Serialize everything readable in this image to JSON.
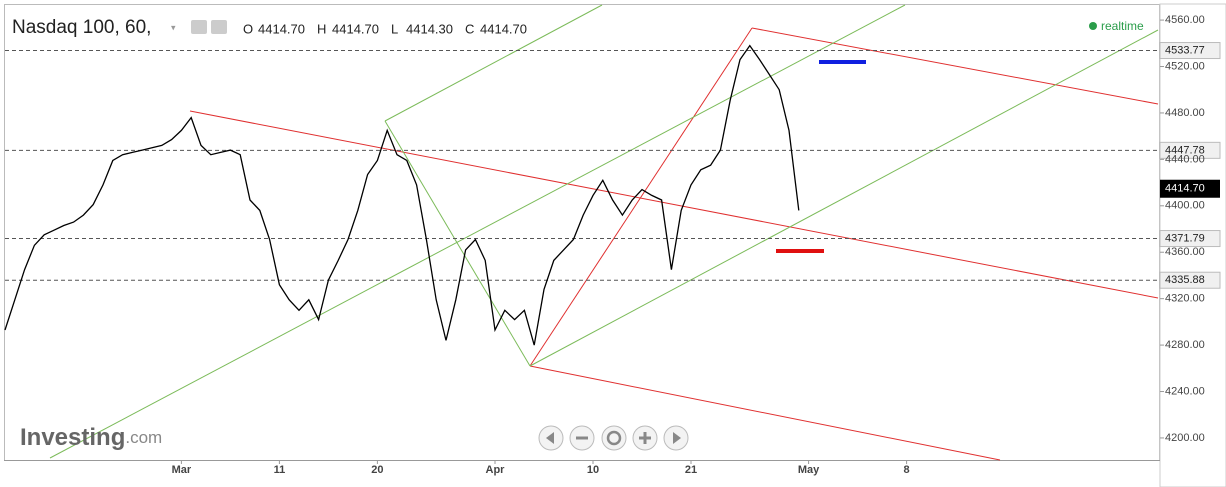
{
  "header": {
    "title": "Nasdaq 100, 60,",
    "ohlc": [
      {
        "key": "O",
        "value": "4414.70"
      },
      {
        "key": "H",
        "value": "4414.70"
      },
      {
        "key": "L",
        "value": "4414.30"
      },
      {
        "key": "C",
        "value": "4414.70"
      }
    ],
    "status": "realtime",
    "brand": "Investing",
    "brand_suffix": ".com"
  },
  "chart_data": {
    "type": "line",
    "color": "#000000",
    "categories": [
      null,
      null,
      null,
      null,
      null,
      null,
      null,
      null,
      null,
      null,
      null,
      null,
      null,
      null,
      null,
      null,
      null,
      null,
      "Mar",
      null,
      null,
      null,
      null,
      null,
      null,
      null,
      null,
      null,
      "11",
      null,
      null,
      null,
      null,
      null,
      null,
      null,
      null,
      null,
      "20",
      null,
      null,
      null,
      null,
      null,
      null,
      null,
      null,
      null,
      null,
      null,
      "Apr",
      null,
      null,
      null,
      null,
      null,
      null,
      null,
      null,
      null,
      "10",
      null,
      null,
      null,
      null,
      null,
      null,
      null,
      null,
      null,
      "21",
      null,
      null,
      null,
      null,
      null,
      null,
      null,
      null,
      null,
      null,
      null,
      "May",
      null,
      null,
      null,
      null,
      null,
      null,
      null,
      null,
      null,
      "8"
    ],
    "values": [
      4293,
      4319,
      4345,
      4366,
      4375,
      4379,
      4383,
      4386,
      4392,
      4401,
      4418,
      4439,
      4444,
      4446,
      4448,
      4450,
      4452,
      4457,
      4465,
      4476,
      4452,
      4444,
      4446,
      4448,
      4444,
      4405,
      4396,
      4371,
      4332,
      4319,
      4310,
      4319,
      4302,
      4336,
      4353,
      4371,
      4396,
      4427,
      4439,
      4465,
      4444,
      4439,
      4418,
      4371,
      4319,
      4284,
      4319,
      4362,
      4371,
      4353,
      4293,
      4310,
      4302,
      4310,
      4280,
      4328,
      4353,
      4362,
      4371,
      4392,
      4409,
      4422,
      4405,
      4392,
      4405,
      4414,
      4409,
      4405,
      4345,
      4396,
      4418,
      4431,
      4435,
      4448,
      4491,
      4526,
      4538,
      4526,
      4513,
      4500,
      4465,
      4396,
      null,
      null,
      null,
      null,
      null,
      null,
      null,
      null,
      null,
      null,
      null
    ],
    "ylim": [
      4181,
      4573
    ],
    "yticks": [
      {
        "value": 4200,
        "label": "4200.00"
      },
      {
        "value": 4240,
        "label": "4240.00"
      },
      {
        "value": 4280,
        "label": "4280.00"
      },
      {
        "value": 4320,
        "label": "4320.00"
      },
      {
        "value": 4360,
        "label": "4360.00"
      },
      {
        "value": 4400,
        "label": "4400.00"
      },
      {
        "value": 4440,
        "label": "4440.00"
      },
      {
        "value": 4480,
        "label": "4480.00"
      },
      {
        "value": 4520,
        "label": "4520.00"
      },
      {
        "value": 4560,
        "label": "4560.00"
      }
    ],
    "price_levels": [
      4533.77,
      4447.78,
      4371.79,
      4335.88
    ],
    "last_price": {
      "value": 4414.7,
      "label": "4414.70"
    }
  }
}
